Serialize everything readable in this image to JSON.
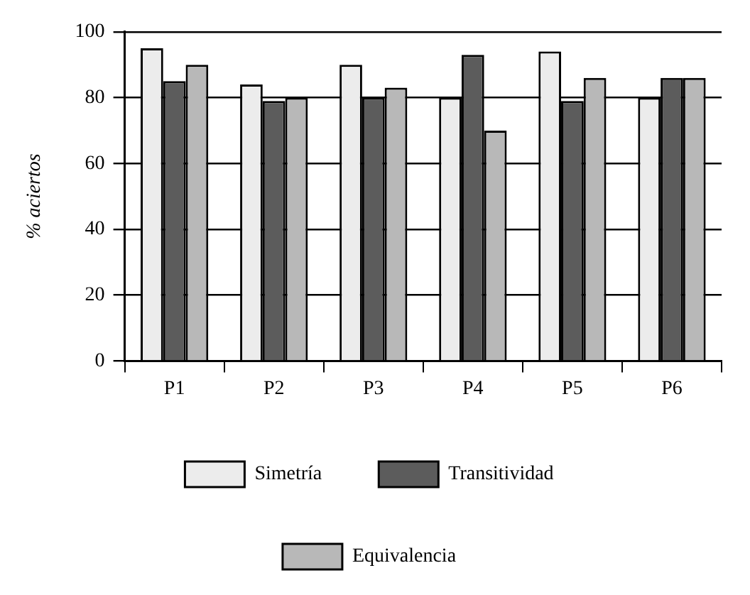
{
  "chart_data": {
    "type": "bar",
    "ylabel": "% aciertos",
    "categories": [
      "P1",
      "P2",
      "P3",
      "P4",
      "P5",
      "P6"
    ],
    "series": [
      {
        "name": "Simetría",
        "color": "#ececec",
        "values": [
          95,
          84,
          90,
          80,
          94,
          80
        ]
      },
      {
        "name": "Transitividad",
        "color": "#5c5c5c",
        "values": [
          85,
          79,
          80,
          93,
          79,
          86
        ]
      },
      {
        "name": "Equivalencia",
        "color": "#b8b8b8",
        "values": [
          90,
          80,
          83,
          70,
          86,
          86
        ]
      }
    ],
    "ylim": [
      0,
      100
    ],
    "yticks": [
      0,
      20,
      40,
      60,
      80,
      100
    ],
    "grid": "y",
    "legend": "bottom"
  }
}
